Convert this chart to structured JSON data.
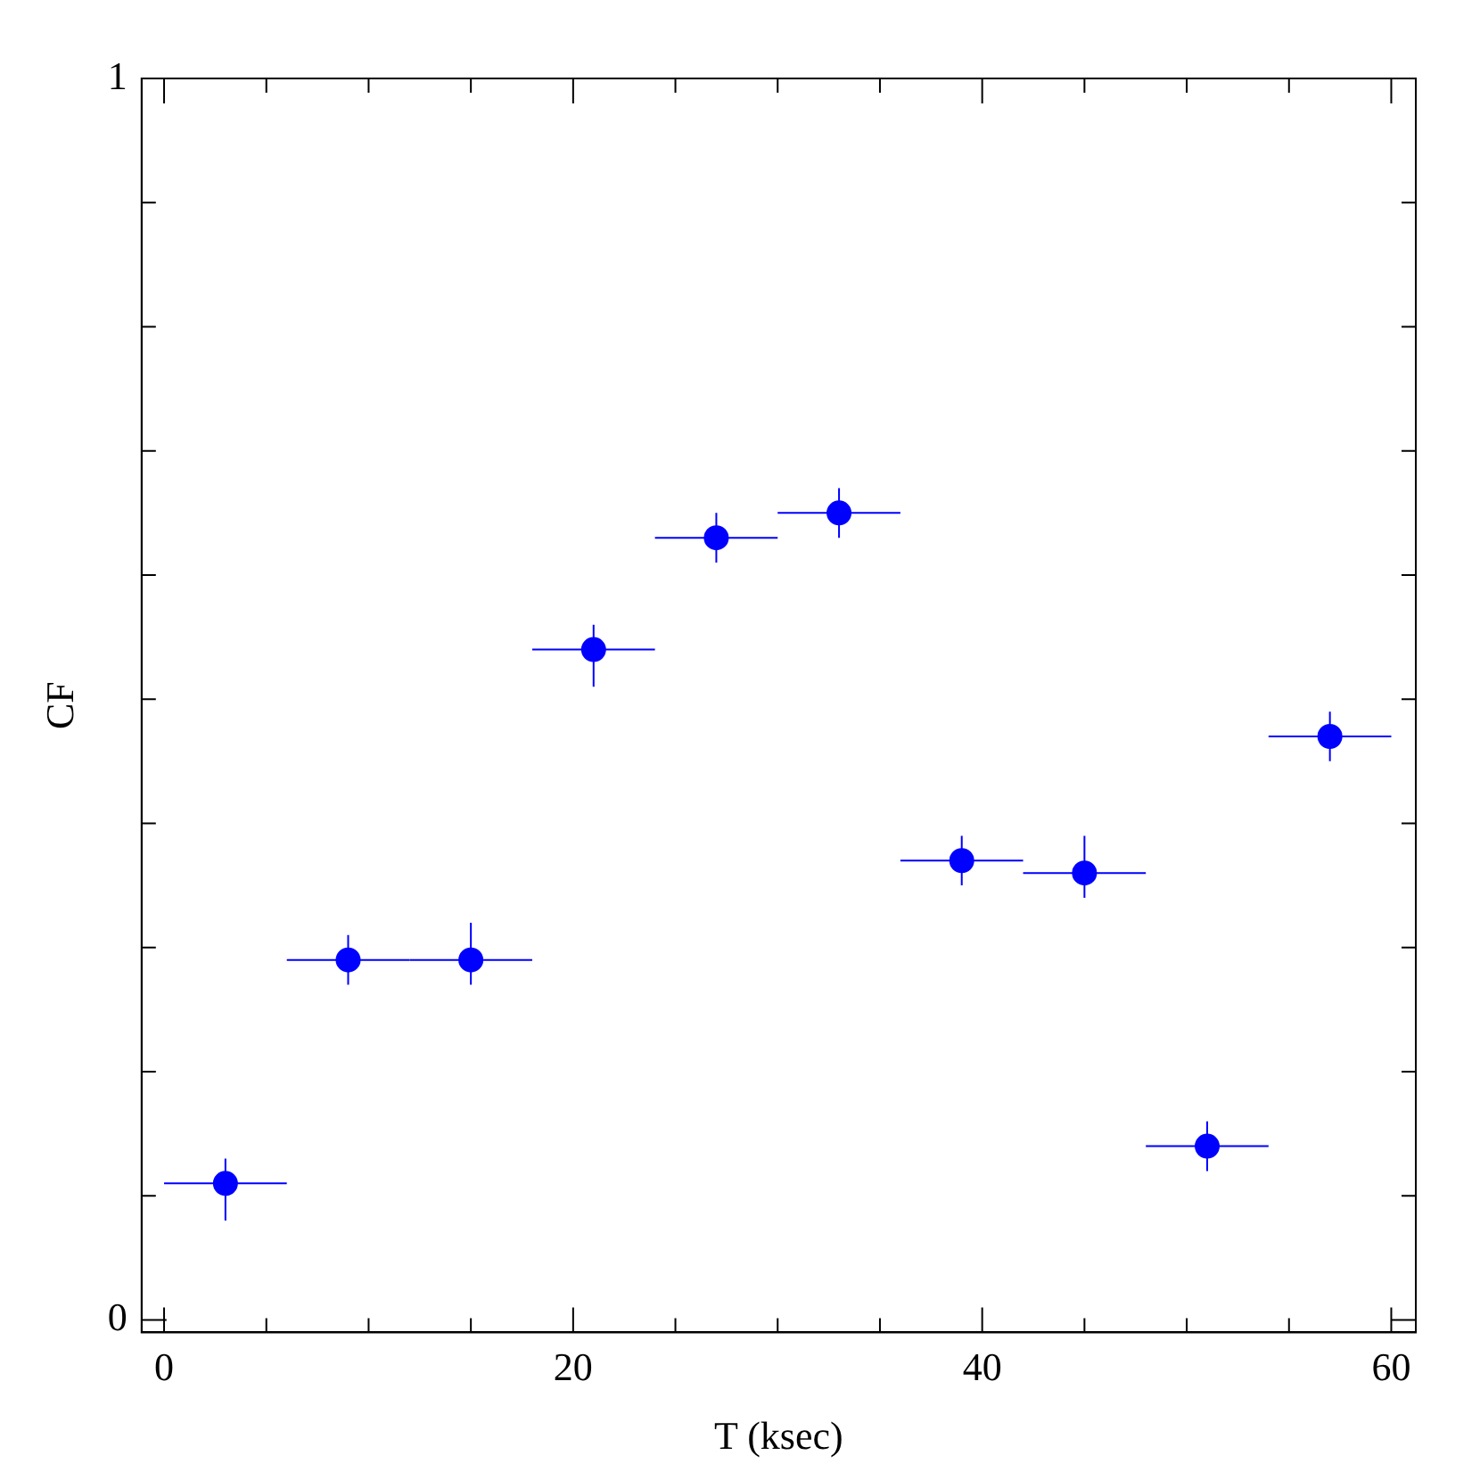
{
  "chart_data": {
    "type": "scatter",
    "xlabel": "T (ksec)",
    "ylabel": "CF",
    "x": [
      3,
      9,
      15,
      21,
      27,
      33,
      39,
      45,
      51,
      57
    ],
    "series": [
      {
        "color": "#0000ff",
        "values": [
          0.11,
          0.29,
          0.29,
          0.54,
          0.63,
          0.65,
          0.37,
          0.36,
          0.14,
          0.47
        ],
        "errors": [
          [
            0.08,
            0.13
          ],
          0.02,
          [
            0.27,
            0.32
          ],
          [
            0.51,
            0.56
          ],
          0.02,
          [
            0.63,
            0.67
          ],
          0.02,
          [
            0.34,
            0.39
          ],
          0.02,
          0.02
        ],
        "xerrors": [
          3,
          3,
          3,
          3,
          3,
          3,
          3,
          3,
          3,
          3
        ]
      }
    ],
    "marker": "circle",
    "grid": false,
    "legend": false,
    "xlim": [
      -1.1,
      61.2
    ],
    "ylim": [
      -0.01,
      1
    ],
    "xticks": [
      0,
      {
        "value": 5,
        "label": null
      },
      {
        "value": 10,
        "label": null
      },
      {
        "value": 15,
        "label": null
      },
      20,
      {
        "value": 25,
        "label": null
      },
      {
        "value": 30,
        "label": null
      },
      {
        "value": 35,
        "label": null
      },
      40,
      {
        "value": 45,
        "label": null
      },
      {
        "value": 50,
        "label": null
      },
      {
        "value": 55,
        "label": null
      },
      60
    ],
    "yticks": [
      0,
      {
        "value": 0.1,
        "label": null
      },
      {
        "value": 0.2,
        "label": null
      },
      {
        "value": 0.3,
        "label": null
      },
      {
        "value": 0.4,
        "label": null
      },
      {
        "value": 0.5,
        "label": null
      },
      {
        "value": 0.6,
        "label": null
      },
      {
        "value": 0.7,
        "label": null
      },
      {
        "value": 0.8,
        "label": null
      },
      {
        "value": 0.9,
        "label": null
      },
      1
    ]
  }
}
